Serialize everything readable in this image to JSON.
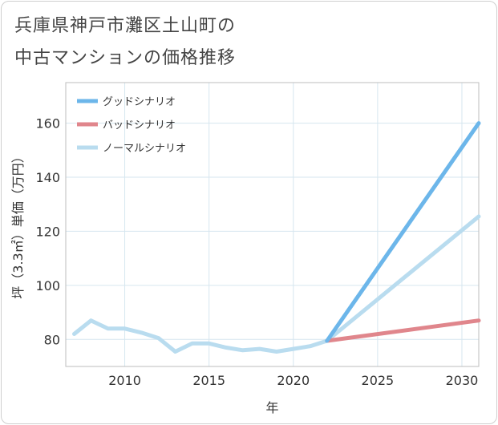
{
  "chart_data": {
    "type": "line",
    "title_lines": [
      "兵庫県神戸市灘区土山町の",
      "中古マンションの価格推移"
    ],
    "xlabel": "年",
    "ylabel": "坪（3.3㎡）単価（万円）",
    "xlim": [
      2006.5,
      2031
    ],
    "ylim": [
      70,
      175
    ],
    "xticks": [
      2010,
      2015,
      2020,
      2025,
      2030
    ],
    "yticks": [
      80,
      100,
      120,
      140,
      160
    ],
    "grid": true,
    "legend_position": "top-left",
    "series": [
      {
        "name": "グッドシナリオ",
        "color": "#6cb6ea",
        "x": [
          2022,
          2031
        ],
        "y": [
          79.5,
          160
        ]
      },
      {
        "name": "バッドシナリオ",
        "color": "#e0868c",
        "x": [
          2022,
          2031
        ],
        "y": [
          79.5,
          87
        ]
      },
      {
        "name": "ノーマルシナリオ",
        "color": "#b9dcef",
        "x": [
          2007,
          2008,
          2009,
          2010,
          2011,
          2012,
          2013,
          2014,
          2015,
          2016,
          2017,
          2018,
          2019,
          2020,
          2021,
          2022,
          2031
        ],
        "y": [
          82,
          87,
          84,
          84,
          82.5,
          80.5,
          75.5,
          78.5,
          78.5,
          77,
          76,
          76.5,
          75.5,
          76.5,
          77.5,
          79.5,
          125.5
        ]
      }
    ]
  }
}
